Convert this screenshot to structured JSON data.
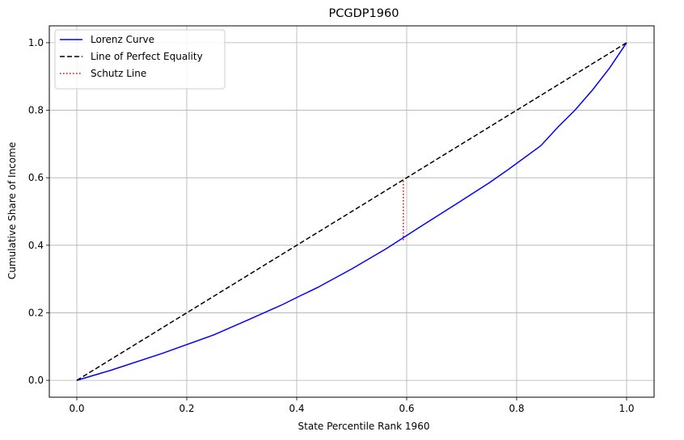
{
  "chart_data": {
    "type": "line",
    "title": "PCGDP1960",
    "xlabel": "State Percentile Rank 1960",
    "ylabel": "Cumulative Share of Income",
    "xlim": [
      -0.05,
      1.05
    ],
    "ylim": [
      -0.05,
      1.05
    ],
    "xticks": [
      0.0,
      0.2,
      0.4,
      0.6,
      0.8,
      1.0
    ],
    "yticks": [
      0.0,
      0.2,
      0.4,
      0.6,
      0.8,
      1.0
    ],
    "xtick_labels": [
      "0.0",
      "0.2",
      "0.4",
      "0.6",
      "0.8",
      "1.0"
    ],
    "ytick_labels": [
      "0.0",
      "0.2",
      "0.4",
      "0.6",
      "0.8",
      "1.0"
    ],
    "grid": true,
    "legend_position": "top-left",
    "series": [
      {
        "name": "Lorenz Curve",
        "color": "#0000ff",
        "style": "solid",
        "x": [
          0.0,
          0.0625,
          0.156,
          0.25,
          0.313,
          0.375,
          0.406,
          0.438,
          0.5,
          0.563,
          0.625,
          0.688,
          0.75,
          0.781,
          0.844,
          0.875,
          0.906,
          0.938,
          0.969,
          1.0
        ],
        "y": [
          0.0,
          0.03,
          0.08,
          0.135,
          0.18,
          0.225,
          0.25,
          0.275,
          0.33,
          0.39,
          0.455,
          0.52,
          0.585,
          0.62,
          0.695,
          0.75,
          0.8,
          0.86,
          0.925,
          1.0
        ]
      },
      {
        "name": "Line of Perfect Equality",
        "color": "#000000",
        "style": "dashed",
        "x": [
          0.0,
          1.0
        ],
        "y": [
          0.0,
          1.0
        ]
      },
      {
        "name": "Schutz Line",
        "color": "#ff0000",
        "style": "dotted",
        "x": [
          0.594,
          0.594
        ],
        "y": [
          0.415,
          0.594
        ]
      }
    ]
  }
}
